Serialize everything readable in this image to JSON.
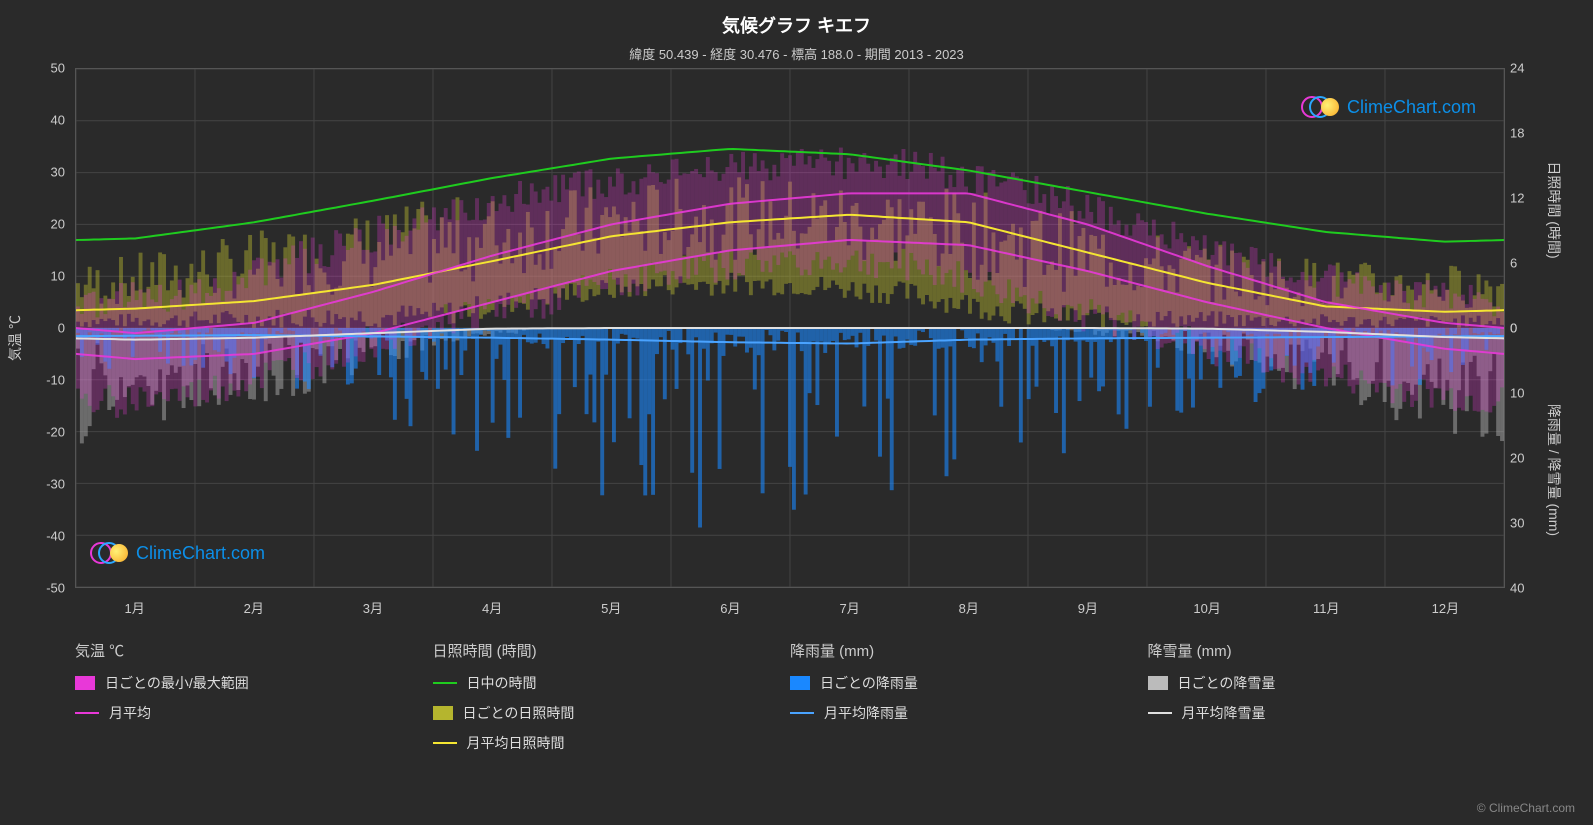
{
  "title": "気候グラフ キエフ",
  "subtitle": "緯度 50.439 - 経度 30.476 - 標高 188.0 - 期間 2013 - 2023",
  "y_left": {
    "label": "気温 ℃",
    "min": -50,
    "max": 50,
    "ticks": [
      50,
      40,
      30,
      20,
      10,
      0,
      -10,
      -20,
      -30,
      -40,
      -50
    ]
  },
  "y_right_top": {
    "label": "日照時間 (時間)",
    "min": 0,
    "max": 24,
    "ticks": [
      24,
      18,
      12,
      6,
      0
    ]
  },
  "y_right_bottom": {
    "label": "降雨量 / 降雪量 (mm)",
    "min": 0,
    "max": 40,
    "ticks": [
      0,
      10,
      20,
      30,
      40
    ]
  },
  "x_axis": {
    "labels": [
      "1月",
      "2月",
      "3月",
      "4月",
      "5月",
      "6月",
      "7月",
      "8月",
      "9月",
      "10月",
      "11月",
      "12月"
    ]
  },
  "colors": {
    "background": "#2a2a2a",
    "grid": "#444444",
    "temp_range": "#e838d8",
    "temp_avg": "#e838d8",
    "daylight": "#1fcc1f",
    "sunshine_daily": "#b5b52e",
    "sunshine_avg": "#f5e632",
    "rain_daily": "#1a88ff",
    "rain_avg": "#4aa3ff",
    "snow_daily": "#bbbbbb",
    "snow_avg": "#e0e0e0"
  },
  "series": {
    "daylight_hours": [
      8.3,
      9.8,
      11.8,
      13.9,
      15.7,
      16.6,
      16.1,
      14.6,
      12.6,
      10.6,
      8.9,
      8.0
    ],
    "sunshine_avg_hours": [
      1.8,
      2.5,
      4.0,
      6.2,
      8.5,
      9.8,
      10.5,
      9.8,
      7.0,
      4.2,
      2.0,
      1.5
    ],
    "temp_avg_max": [
      -1,
      1,
      7,
      14,
      20,
      24,
      26,
      26,
      20,
      12,
      5,
      1
    ],
    "temp_avg_min": [
      -6,
      -5,
      -1,
      5,
      11,
      15,
      17,
      16,
      11,
      5,
      0,
      -4
    ],
    "temp_avg_mean": [
      -3.5,
      -2,
      3,
      9.5,
      15.5,
      19.5,
      21.5,
      21,
      15.5,
      8.5,
      2.5,
      -1.5
    ],
    "rain_avg_mm": [
      1.2,
      1.1,
      1.3,
      1.5,
      1.8,
      2.2,
      2.4,
      1.8,
      1.6,
      1.5,
      1.4,
      1.3
    ],
    "snow_avg_mm": [
      1.8,
      1.5,
      0.8,
      0.1,
      0,
      0,
      0,
      0,
      0,
      0.1,
      0.6,
      1.4
    ],
    "daily_sunshine_range_low": [
      0,
      0,
      0,
      0,
      2,
      3,
      3,
      2,
      0,
      0,
      0,
      0
    ],
    "daily_sunshine_range_high": [
      6,
      8,
      10,
      12,
      13,
      14,
      14,
      13.5,
      12,
      9,
      7,
      6
    ],
    "daily_temp_range_low": [
      -18,
      -16,
      -10,
      -2,
      2,
      8,
      10,
      9,
      2,
      -4,
      -10,
      -15
    ],
    "daily_temp_range_high": [
      8,
      10,
      18,
      25,
      30,
      33,
      35,
      35,
      30,
      22,
      15,
      10
    ],
    "daily_rain_peaks_mm": [
      8,
      6,
      10,
      15,
      22,
      28,
      30,
      22,
      20,
      14,
      10,
      9
    ],
    "daily_snow_peaks_mm": [
      18,
      14,
      10,
      3,
      0,
      0,
      0,
      0,
      0,
      2,
      8,
      15
    ]
  },
  "legend": {
    "temp_header": "気温 ℃",
    "temp_range": "日ごとの最小/最大範囲",
    "temp_avg": "月平均",
    "sun_header": "日照時間 (時間)",
    "daylight": "日中の時間",
    "sunshine_daily": "日ごとの日照時間",
    "sunshine_avg": "月平均日照時間",
    "rain_header": "降雨量 (mm)",
    "rain_daily": "日ごとの降雨量",
    "rain_avg": "月平均降雨量",
    "snow_header": "降雪量 (mm)",
    "snow_daily": "日ごとの降雪量",
    "snow_avg": "月平均降雪量"
  },
  "watermark": "ClimeChart.com",
  "copyright": "© ClimeChart.com"
}
